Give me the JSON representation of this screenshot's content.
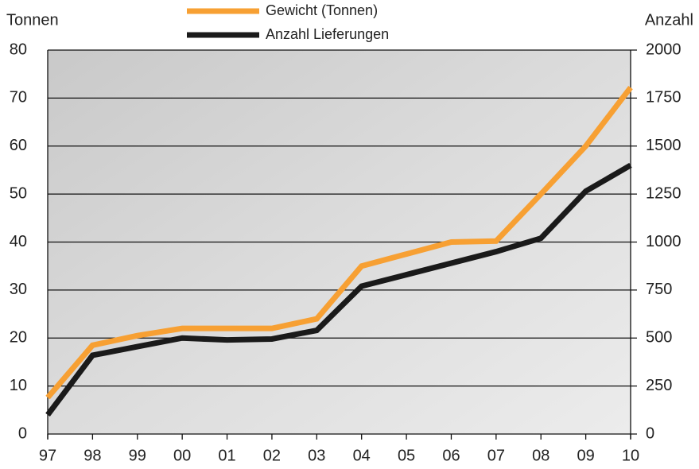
{
  "chart_data": {
    "type": "line",
    "y_label": "Tonnen",
    "y2_label": "Anzahl",
    "categories": [
      "97",
      "98",
      "99",
      "00",
      "01",
      "02",
      "03",
      "04",
      "05",
      "06",
      "07",
      "08",
      "09",
      "10"
    ],
    "series": [
      {
        "name": "Gewicht (Tonnen)",
        "color": "#f7a033",
        "values": [
          7.6,
          18.5,
          20.5,
          22,
          22,
          22,
          24,
          35,
          37.5,
          40,
          40.2,
          50,
          60,
          72.2
        ]
      },
      {
        "name": "Anzahl Lieferungen",
        "color": "#1a1a1a",
        "axis": "y2",
        "values": [
          100,
          410,
          455,
          500,
          490,
          495,
          540,
          770,
          830,
          890,
          950,
          1020,
          1265,
          1400
        ]
      }
    ],
    "ylim": [
      0,
      80
    ],
    "yticks": [
      0,
      10,
      20,
      30,
      40,
      50,
      60,
      70,
      80
    ],
    "y2lim": [
      0,
      2000
    ],
    "y2ticks": [
      0,
      250,
      500,
      750,
      1000,
      1250,
      1500,
      1750,
      2000
    ],
    "grid": true
  }
}
